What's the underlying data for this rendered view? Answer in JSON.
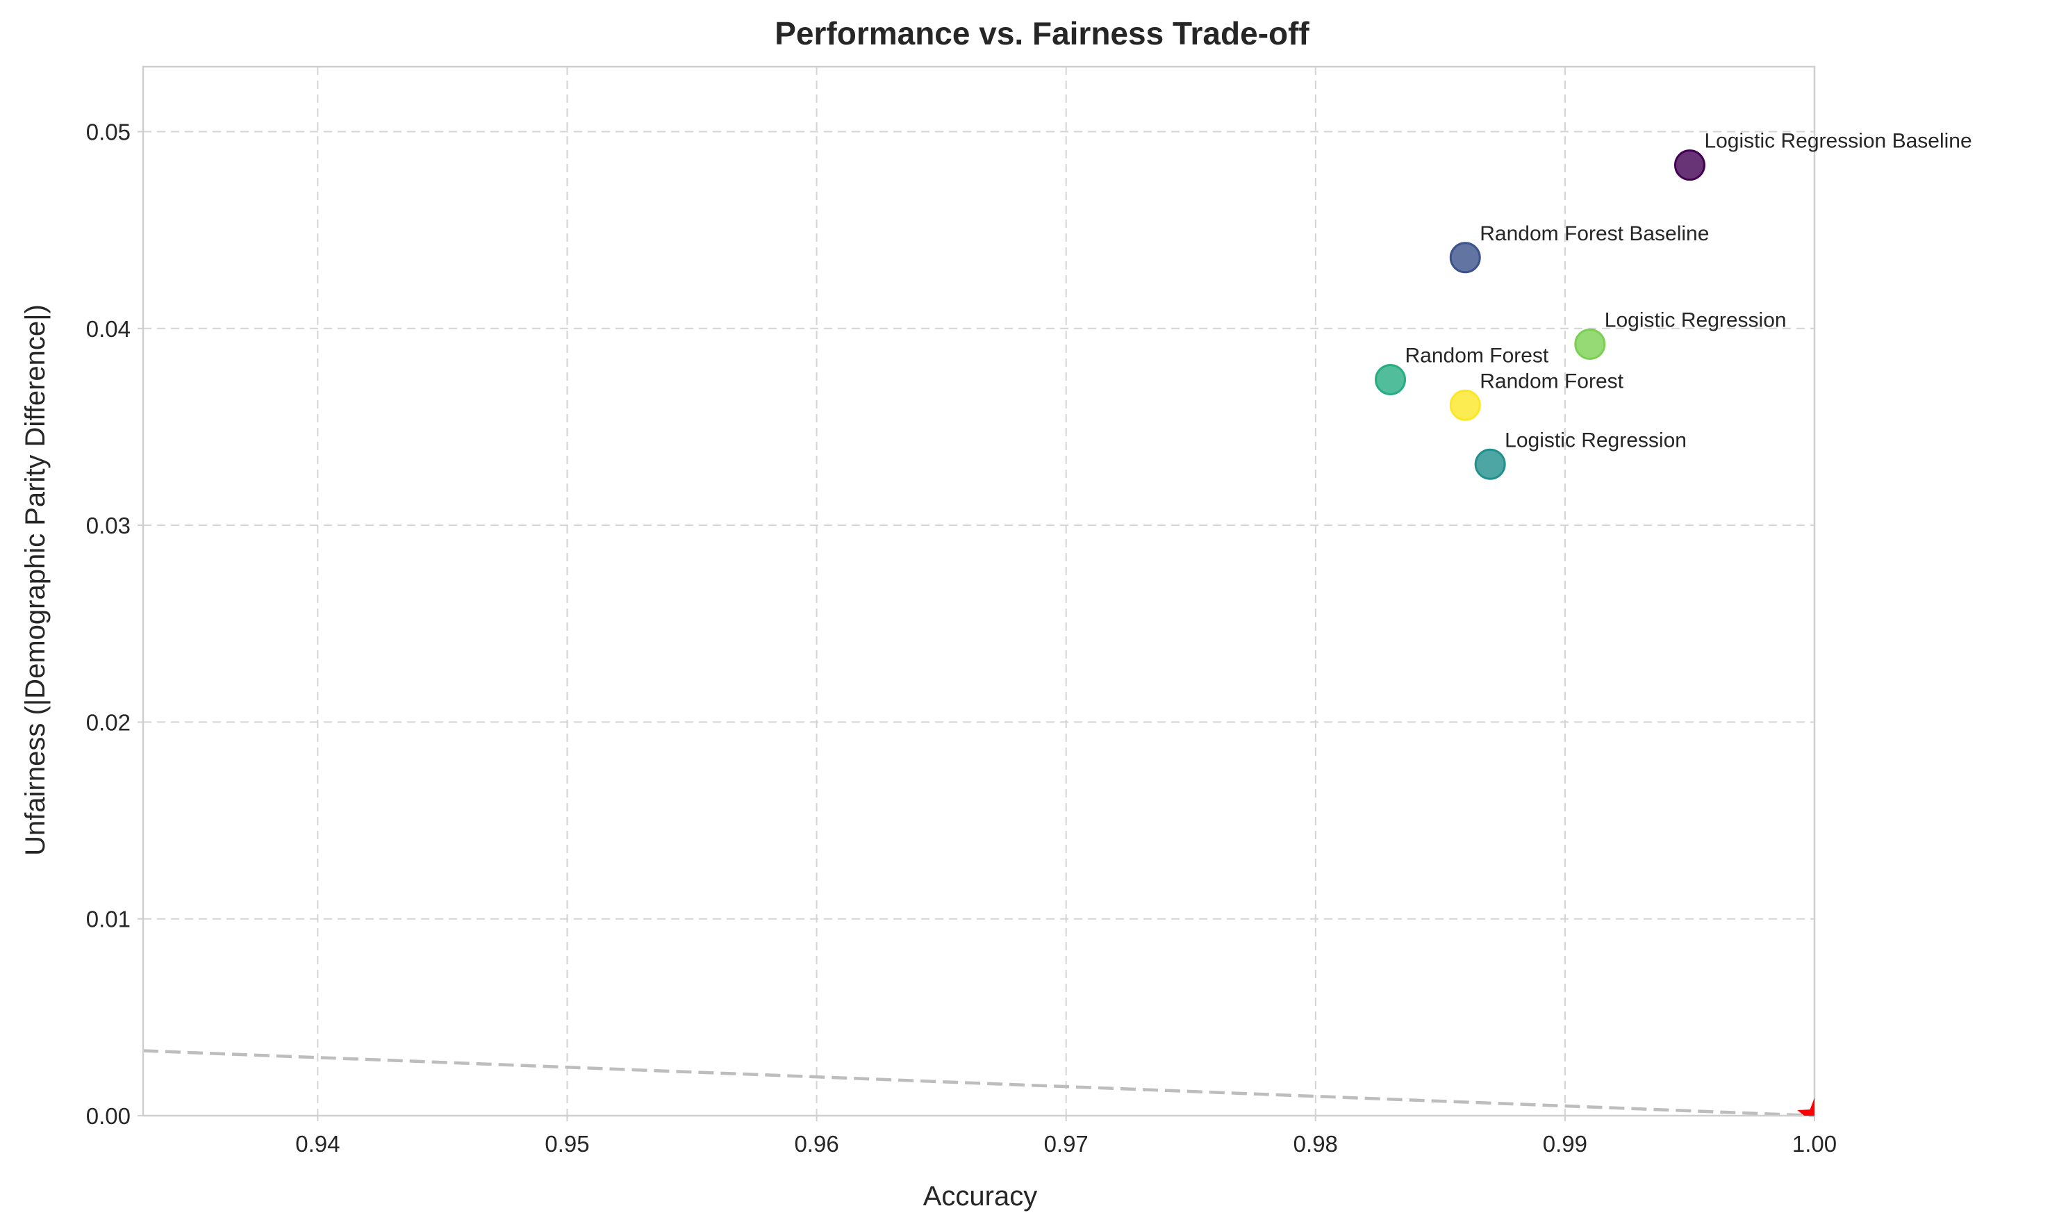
{
  "chart_data": {
    "type": "scatter",
    "title": "Performance vs. Fairness Trade-off",
    "xlabel": "Accuracy",
    "ylabel": "Unfairness (|Demographic Parity Difference|)",
    "xlim": [
      0.933,
      1.0
    ],
    "ylim": [
      0.0,
      0.0533
    ],
    "xticks": [
      0.94,
      0.95,
      0.96,
      0.97,
      0.98,
      0.99,
      1.0
    ],
    "xtick_labels": [
      "0.94",
      "0.95",
      "0.96",
      "0.97",
      "0.98",
      "0.99",
      "1.00"
    ],
    "yticks": [
      0.0,
      0.01,
      0.02,
      0.03,
      0.04,
      0.05
    ],
    "ytick_labels": [
      "0.00",
      "0.01",
      "0.02",
      "0.03",
      "0.04",
      "0.05"
    ],
    "grid": true,
    "points": [
      {
        "label": "Logistic Regression Baseline",
        "x": 0.995,
        "y": 0.0483,
        "color": "#440154"
      },
      {
        "label": "Random Forest Baseline",
        "x": 0.986,
        "y": 0.0436,
        "color": "#3b528b"
      },
      {
        "label": "Logistic Regression",
        "x": 0.987,
        "y": 0.0331,
        "color": "#21908d"
      },
      {
        "label": "Random Forest",
        "x": 0.983,
        "y": 0.0374,
        "color": "#27ad81"
      },
      {
        "label": "Logistic Regression",
        "x": 0.991,
        "y": 0.0392,
        "color": "#7ad151"
      },
      {
        "label": "Random Forest",
        "x": 0.986,
        "y": 0.0361,
        "color": "#fde725"
      }
    ],
    "ideal_point": {
      "x": 1.0,
      "y": 0.0,
      "color": "#ff0000",
      "marker": "star"
    },
    "reference_line": {
      "x": [
        0.933,
        1.0
      ],
      "y": [
        0.0033,
        0.0
      ],
      "color": "#bdbdbd",
      "style": "dashed"
    }
  }
}
